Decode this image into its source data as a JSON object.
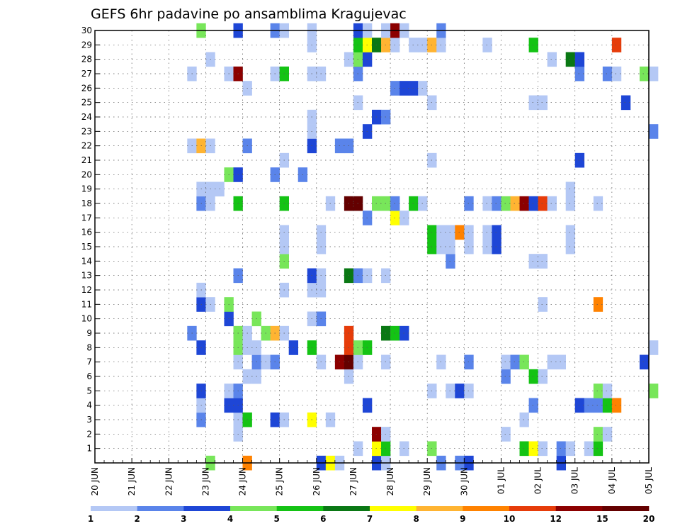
{
  "chart_data": {
    "type": "heatmap",
    "title": "GEFS 6hr padavine po ansamblima Kragujevac",
    "xlabel": "",
    "ylabel": "",
    "x_tick_labels": [
      "20 JUN",
      "21 JUN",
      "22 JUN",
      "23 JUN",
      "24 JUN",
      "25 JUN",
      "26 JUN",
      "27 JUN",
      "28 JUN",
      "29 JUN",
      "30 JUN",
      "01 JUL",
      "02 JUL",
      "03 JUL",
      "04 JUL",
      "05 JUL"
    ],
    "y_tick_labels": [
      "1",
      "2",
      "3",
      "4",
      "5",
      "6",
      "7",
      "8",
      "9",
      "10",
      "11",
      "12",
      "13",
      "14",
      "15",
      "16",
      "17",
      "18",
      "19",
      "20",
      "21",
      "22",
      "23",
      "24",
      "25",
      "26",
      "27",
      "28",
      "29",
      "30"
    ],
    "x_range_steps": [
      0,
      60
    ],
    "y_range_members": [
      0,
      30
    ],
    "grid": true,
    "legend_placement": "bottom",
    "colorbar": {
      "labels": [
        "1",
        "2",
        "3",
        "4",
        "5",
        "6",
        "7",
        "8",
        "9",
        "10",
        "12",
        "15",
        "20"
      ],
      "colors": [
        "#b4c8f5",
        "#5a84ea",
        "#1e46d6",
        "#78e65a",
        "#14c314",
        "#0a7814",
        "#ffff00",
        "#ffb432",
        "#ff8200",
        "#e63c0a",
        "#8c0000",
        "#640000"
      ]
    },
    "cells": [
      [
        0,
        12,
        3
      ],
      [
        0,
        16,
        8
      ],
      [
        0,
        24,
        2
      ],
      [
        0,
        25,
        6
      ],
      [
        0,
        26,
        0
      ],
      [
        0,
        30,
        2
      ],
      [
        0,
        31,
        0
      ],
      [
        0,
        37,
        1
      ],
      [
        0,
        39,
        1
      ],
      [
        0,
        40,
        2
      ],
      [
        0,
        50,
        2
      ],
      [
        1,
        28,
        0
      ],
      [
        1,
        30,
        6
      ],
      [
        1,
        31,
        4
      ],
      [
        1,
        33,
        0
      ],
      [
        1,
        36,
        3
      ],
      [
        1,
        46,
        4
      ],
      [
        1,
        47,
        6
      ],
      [
        1,
        48,
        0
      ],
      [
        1,
        50,
        1
      ],
      [
        1,
        51,
        0
      ],
      [
        1,
        53,
        0
      ],
      [
        1,
        54,
        4
      ],
      [
        2,
        15,
        0
      ],
      [
        2,
        30,
        10
      ],
      [
        2,
        31,
        0
      ],
      [
        2,
        44,
        0
      ],
      [
        2,
        54,
        3
      ],
      [
        2,
        55,
        0
      ],
      [
        3,
        11,
        1
      ],
      [
        3,
        15,
        0
      ],
      [
        3,
        16,
        4
      ],
      [
        3,
        19,
        2
      ],
      [
        3,
        20,
        0
      ],
      [
        3,
        23,
        6
      ],
      [
        3,
        25,
        0
      ],
      [
        3,
        46,
        0
      ],
      [
        4,
        11,
        0
      ],
      [
        4,
        14,
        2
      ],
      [
        4,
        15,
        2
      ],
      [
        4,
        29,
        2
      ],
      [
        4,
        47,
        1
      ],
      [
        4,
        52,
        2
      ],
      [
        4,
        53,
        1
      ],
      [
        4,
        54,
        1
      ],
      [
        4,
        55,
        4
      ],
      [
        4,
        56,
        8
      ],
      [
        5,
        11,
        2
      ],
      [
        5,
        14,
        0
      ],
      [
        5,
        15,
        1
      ],
      [
        5,
        36,
        0
      ],
      [
        5,
        38,
        0
      ],
      [
        5,
        39,
        2
      ],
      [
        5,
        40,
        0
      ],
      [
        5,
        54,
        3
      ],
      [
        5,
        55,
        0
      ],
      [
        5,
        60,
        3
      ],
      [
        6,
        16,
        0
      ],
      [
        6,
        17,
        0
      ],
      [
        6,
        27,
        0
      ],
      [
        6,
        44,
        1
      ],
      [
        6,
        47,
        4
      ],
      [
        6,
        48,
        0
      ],
      [
        7,
        15,
        0
      ],
      [
        7,
        17,
        1
      ],
      [
        7,
        18,
        0
      ],
      [
        7,
        19,
        1
      ],
      [
        7,
        24,
        0
      ],
      [
        7,
        26,
        10
      ],
      [
        7,
        27,
        11
      ],
      [
        7,
        28,
        0
      ],
      [
        7,
        31,
        0
      ],
      [
        7,
        37,
        0
      ],
      [
        7,
        40,
        1
      ],
      [
        7,
        44,
        0
      ],
      [
        7,
        45,
        1
      ],
      [
        7,
        46,
        3
      ],
      [
        7,
        49,
        0
      ],
      [
        7,
        50,
        0
      ],
      [
        7,
        59,
        2
      ],
      [
        8,
        11,
        2
      ],
      [
        8,
        15,
        3
      ],
      [
        8,
        16,
        0
      ],
      [
        8,
        17,
        0
      ],
      [
        8,
        21,
        2
      ],
      [
        8,
        23,
        4
      ],
      [
        8,
        27,
        9
      ],
      [
        8,
        28,
        3
      ],
      [
        8,
        29,
        4
      ],
      [
        8,
        60,
        0
      ],
      [
        9,
        10,
        1
      ],
      [
        9,
        15,
        3
      ],
      [
        9,
        16,
        0
      ],
      [
        9,
        18,
        3
      ],
      [
        9,
        19,
        7
      ],
      [
        9,
        20,
        0
      ],
      [
        9,
        27,
        9
      ],
      [
        9,
        31,
        5
      ],
      [
        9,
        32,
        4
      ],
      [
        9,
        33,
        2
      ],
      [
        10,
        14,
        2
      ],
      [
        10,
        17,
        3
      ],
      [
        10,
        23,
        0
      ],
      [
        10,
        24,
        1
      ],
      [
        11,
        11,
        2
      ],
      [
        11,
        12,
        0
      ],
      [
        11,
        14,
        3
      ],
      [
        11,
        48,
        0
      ],
      [
        11,
        54,
        8
      ],
      [
        12,
        11,
        0
      ],
      [
        12,
        23,
        0
      ],
      [
        12,
        24,
        0
      ],
      [
        12,
        20,
        0
      ],
      [
        13,
        15,
        1
      ],
      [
        13,
        23,
        2
      ],
      [
        13,
        24,
        0
      ],
      [
        13,
        27,
        5
      ],
      [
        13,
        28,
        1
      ],
      [
        13,
        29,
        0
      ],
      [
        13,
        31,
        0
      ],
      [
        14,
        20,
        3
      ],
      [
        14,
        38,
        1
      ],
      [
        14,
        47,
        0
      ],
      [
        14,
        48,
        0
      ],
      [
        15,
        20,
        0
      ],
      [
        15,
        24,
        0
      ],
      [
        15,
        36,
        4
      ],
      [
        15,
        37,
        0
      ],
      [
        15,
        38,
        0
      ],
      [
        15,
        40,
        0
      ],
      [
        15,
        42,
        0
      ],
      [
        15,
        43,
        2
      ],
      [
        15,
        51,
        0
      ],
      [
        16,
        20,
        0
      ],
      [
        16,
        24,
        0
      ],
      [
        16,
        36,
        4
      ],
      [
        16,
        37,
        0
      ],
      [
        16,
        38,
        0
      ],
      [
        16,
        39,
        8
      ],
      [
        16,
        40,
        0
      ],
      [
        16,
        42,
        0
      ],
      [
        16,
        43,
        2
      ],
      [
        16,
        51,
        0
      ],
      [
        17,
        29,
        1
      ],
      [
        17,
        32,
        6
      ],
      [
        17,
        33,
        0
      ],
      [
        18,
        11,
        1
      ],
      [
        18,
        12,
        0
      ],
      [
        18,
        15,
        4
      ],
      [
        18,
        20,
        4
      ],
      [
        18,
        25,
        0
      ],
      [
        18,
        27,
        11
      ],
      [
        18,
        28,
        11
      ],
      [
        18,
        30,
        3
      ],
      [
        18,
        31,
        3
      ],
      [
        18,
        32,
        1
      ],
      [
        18,
        34,
        4
      ],
      [
        18,
        35,
        0
      ],
      [
        18,
        40,
        1
      ],
      [
        18,
        42,
        0
      ],
      [
        18,
        43,
        1
      ],
      [
        18,
        44,
        3
      ],
      [
        18,
        45,
        7
      ],
      [
        18,
        46,
        10
      ],
      [
        18,
        47,
        2
      ],
      [
        18,
        48,
        9
      ],
      [
        18,
        49,
        0
      ],
      [
        18,
        51,
        0
      ],
      [
        18,
        54,
        0
      ],
      [
        19,
        11,
        0
      ],
      [
        19,
        12,
        0
      ],
      [
        19,
        13,
        0
      ],
      [
        19,
        51,
        0
      ],
      [
        20,
        14,
        3
      ],
      [
        20,
        15,
        2
      ],
      [
        20,
        19,
        1
      ],
      [
        20,
        22,
        1
      ],
      [
        21,
        20,
        0
      ],
      [
        21,
        36,
        0
      ],
      [
        21,
        52,
        2
      ],
      [
        22,
        10,
        0
      ],
      [
        22,
        11,
        7
      ],
      [
        22,
        12,
        0
      ],
      [
        22,
        16,
        1
      ],
      [
        22,
        23,
        2
      ],
      [
        22,
        26,
        1
      ],
      [
        22,
        27,
        1
      ],
      [
        23,
        23,
        0
      ],
      [
        23,
        29,
        2
      ],
      [
        23,
        60,
        1
      ],
      [
        24,
        23,
        0
      ],
      [
        24,
        30,
        2
      ],
      [
        24,
        31,
        1
      ],
      [
        25,
        28,
        0
      ],
      [
        25,
        36,
        0
      ],
      [
        25,
        47,
        0
      ],
      [
        25,
        48,
        0
      ],
      [
        25,
        57,
        2
      ],
      [
        26,
        16,
        0
      ],
      [
        26,
        32,
        1
      ],
      [
        26,
        33,
        2
      ],
      [
        26,
        34,
        2
      ],
      [
        26,
        35,
        0
      ],
      [
        27,
        10,
        0
      ],
      [
        27,
        14,
        0
      ],
      [
        27,
        15,
        10
      ],
      [
        27,
        19,
        0
      ],
      [
        27,
        20,
        4
      ],
      [
        27,
        23,
        0
      ],
      [
        27,
        24,
        0
      ],
      [
        27,
        28,
        1
      ],
      [
        27,
        52,
        1
      ],
      [
        27,
        55,
        1
      ],
      [
        27,
        56,
        0
      ],
      [
        27,
        59,
        3
      ],
      [
        27,
        60,
        0
      ],
      [
        28,
        12,
        0
      ],
      [
        28,
        27,
        0
      ],
      [
        28,
        28,
        3
      ],
      [
        28,
        29,
        2
      ],
      [
        28,
        49,
        0
      ],
      [
        28,
        51,
        5
      ],
      [
        28,
        52,
        2
      ],
      [
        29,
        23,
        0
      ],
      [
        29,
        28,
        4
      ],
      [
        29,
        29,
        6
      ],
      [
        29,
        30,
        5
      ],
      [
        29,
        31,
        7
      ],
      [
        29,
        32,
        0
      ],
      [
        29,
        34,
        0
      ],
      [
        29,
        35,
        0
      ],
      [
        29,
        36,
        7
      ],
      [
        29,
        37,
        0
      ],
      [
        29,
        42,
        0
      ],
      [
        29,
        47,
        4
      ],
      [
        29,
        56,
        9
      ],
      [
        30,
        11,
        3
      ],
      [
        30,
        15,
        2
      ],
      [
        30,
        19,
        1
      ],
      [
        30,
        20,
        0
      ],
      [
        30,
        23,
        0
      ],
      [
        30,
        28,
        2
      ],
      [
        30,
        29,
        0
      ],
      [
        30,
        31,
        0
      ],
      [
        30,
        32,
        10
      ],
      [
        30,
        33,
        0
      ],
      [
        30,
        37,
        1
      ]
    ]
  }
}
